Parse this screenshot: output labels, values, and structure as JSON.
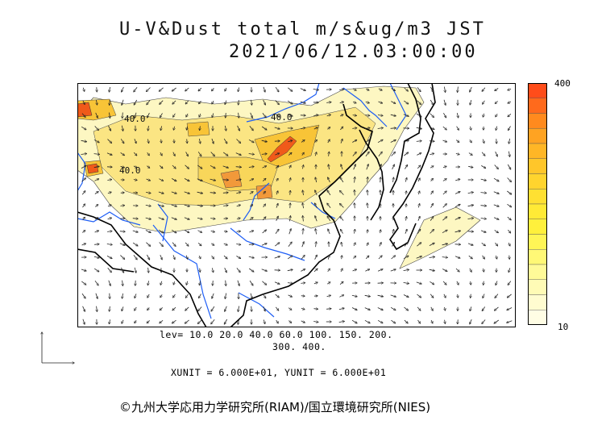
{
  "title": {
    "line1": "U-V&Dust total m/s&ug/m3 JST",
    "line2": "2021/06/12.03:00:00"
  },
  "colorbar": {
    "max_label": "400",
    "min_label": "10",
    "colors": [
      "#ff4d1a",
      "#ff6a1c",
      "#ff8a1e",
      "#ffa322",
      "#ffb626",
      "#ffc62a",
      "#ffd42e",
      "#ffe032",
      "#ffea36",
      "#fff03c",
      "#fff556",
      "#fff876",
      "#fffa98",
      "#fffbb6",
      "#fffcd0",
      "#fffde4"
    ]
  },
  "levels": {
    "line1": "lev= 10.0 20.0 40.0 60.0 100. 150. 200.",
    "line2": "300. 400."
  },
  "units": "XUNIT = 6.000E+01, YUNIT = 6.000E+01",
  "contour_labels": [
    "40.0",
    "40.0",
    "40.0"
  ],
  "copyright": "©九州大学応用力学研究所(RIAM)/国立環境研究所(NIES)",
  "colors": {
    "coast": "#000000",
    "river": "#1e5ef5",
    "dust_light": "#fdf7c2",
    "dust_mid": "#fbe583",
    "dust_high": "#f8c437",
    "dust_peak": "#f05a1a"
  }
}
